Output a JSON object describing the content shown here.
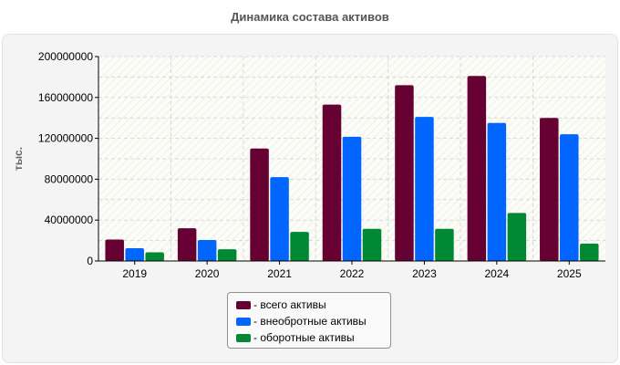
{
  "chart_data": {
    "type": "bar",
    "title": "Динамика состава активов",
    "ylabel": "тыс.",
    "xlabel": "",
    "categories": [
      "2019",
      "2020",
      "2021",
      "2022",
      "2023",
      "2024",
      "2025"
    ],
    "series": [
      {
        "name": "- всего активы",
        "color": "#660033",
        "values": [
          21000000,
          32000000,
          110000000,
          153000000,
          172000000,
          181000000,
          140000000
        ]
      },
      {
        "name": "- внеобротные активы",
        "color": "#0066ff",
        "values": [
          12500000,
          20500000,
          82000000,
          121500000,
          141000000,
          135000000,
          124000000
        ]
      },
      {
        "name": "- оборотные активы",
        "color": "#008833",
        "values": [
          8500000,
          11500000,
          28500000,
          31500000,
          31500000,
          47000000,
          17000000
        ]
      }
    ],
    "ylim": [
      0,
      200000000
    ],
    "yticks": [
      0,
      40000000,
      80000000,
      120000000,
      160000000,
      200000000
    ],
    "grid": true,
    "legend": "bottom-center"
  }
}
